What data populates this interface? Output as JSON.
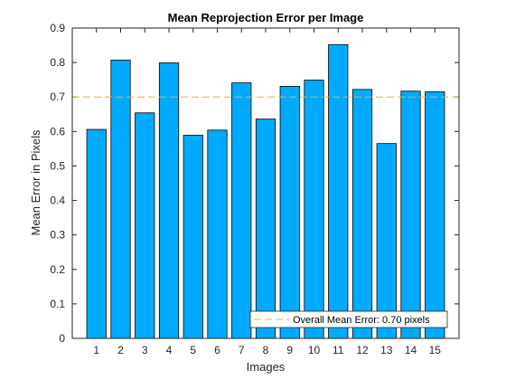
{
  "chart_data": {
    "type": "bar",
    "title": "Mean Reprojection Error per Image",
    "xlabel": "Images",
    "ylabel": "Mean Error in Pixels",
    "categories": [
      "1",
      "2",
      "3",
      "4",
      "5",
      "6",
      "7",
      "8",
      "9",
      "10",
      "11",
      "12",
      "13",
      "14",
      "15"
    ],
    "values": [
      0.606,
      0.807,
      0.654,
      0.799,
      0.589,
      0.604,
      0.741,
      0.636,
      0.731,
      0.749,
      0.852,
      0.722,
      0.565,
      0.717,
      0.715
    ],
    "ylim": [
      0,
      0.9
    ],
    "yticks": [
      "0",
      "0.1",
      "0.2",
      "0.3",
      "0.4",
      "0.5",
      "0.6",
      "0.7",
      "0.8",
      "0.9"
    ],
    "bar_color": "#00aaff",
    "reference_line": {
      "value": 0.7,
      "label": "Overall Mean Error: 0.70 pixels",
      "color": "#edb120",
      "style": "dashed"
    },
    "legend_position": "bottom-right",
    "grid": false
  }
}
